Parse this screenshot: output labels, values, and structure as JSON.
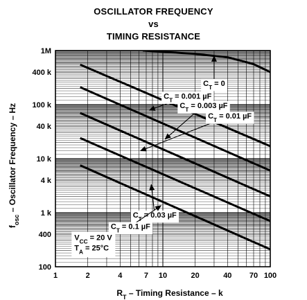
{
  "chart_data": {
    "type": "line",
    "title_lines": [
      "OSCILLATOR FREQUENCY",
      "vs",
      "TIMING RESISTANCE"
    ],
    "xlabel": {
      "main": "R",
      "sub": "T",
      "rest": " – Timing Resistance – k"
    },
    "ylabel": {
      "main": "f",
      "sub": "osc",
      "rest": " – Oscillator Frequency – Hz"
    },
    "x_scale": "log",
    "y_scale": "log",
    "xlim": [
      1,
      100
    ],
    "ylim": [
      100,
      1000000
    ],
    "x_ticks": [
      {
        "v": 1,
        "label": "1"
      },
      {
        "v": 2,
        "label": "2"
      },
      {
        "v": 4,
        "label": "4"
      },
      {
        "v": 7,
        "label": "7"
      },
      {
        "v": 10,
        "label": "10"
      },
      {
        "v": 20,
        "label": "20"
      },
      {
        "v": 40,
        "label": "40"
      },
      {
        "v": 70,
        "label": "70"
      },
      {
        "v": 100,
        "label": "100"
      }
    ],
    "y_ticks": [
      {
        "v": 100,
        "label": "100"
      },
      {
        "v": 400,
        "label": "400"
      },
      {
        "v": 1000,
        "label": "1 k"
      },
      {
        "v": 4000,
        "label": "4 k"
      },
      {
        "v": 10000,
        "label": "10 k"
      },
      {
        "v": 40000,
        "label": "40 k"
      },
      {
        "v": 100000,
        "label": "100 k"
      },
      {
        "v": 400000,
        "label": "400 k"
      },
      {
        "v": 1000000,
        "label": "1M"
      }
    ],
    "grid": true,
    "series": [
      {
        "name": "CT = 0",
        "sub": "T",
        "rest": " = 0",
        "x": [
          6.5,
          20,
          40,
          70,
          100
        ],
        "y": [
          1000000,
          870000,
          750000,
          560000,
          400000
        ]
      },
      {
        "name": "CT = 0.001 µF",
        "sub": "T",
        "rest": " = 0.001 µF",
        "x": [
          1.7,
          100
        ],
        "y": [
          550000,
          17000
        ]
      },
      {
        "name": "CT = 0.003 µF",
        "sub": "T",
        "rest": " = 0.003 µF",
        "x": [
          1.7,
          100
        ],
        "y": [
          210000,
          6000
        ]
      },
      {
        "name": "CT = 0.01 µF",
        "sub": "T",
        "rest": " = 0.01 µF",
        "x": [
          1.7,
          100
        ],
        "y": [
          70000,
          2000
        ]
      },
      {
        "name": "CT = 0.03 µF",
        "sub": "T",
        "rest": " = 0.03 µF",
        "x": [
          1.7,
          100
        ],
        "y": [
          24000,
          700
        ]
      },
      {
        "name": "CT = 0.1 µF",
        "sub": "T",
        "rest": " = 0.1 µF",
        "x": [
          1.7,
          100
        ],
        "y": [
          7500,
          210
        ]
      }
    ],
    "conditions": [
      {
        "main": "V",
        "sub": "CC",
        "rest": " = 20 V"
      },
      {
        "main": "T",
        "sub": "A",
        "rest": " = 25°C"
      }
    ],
    "series_label_prefix": "C",
    "annotations": [
      {
        "series": 0,
        "box_anchor": [
          30,
          250000
        ],
        "arrow_to": [
          30,
          790000
        ]
      },
      {
        "series": 1,
        "box_anchor": [
          17,
          145000
        ],
        "arrow_to": [
          7.5,
          79000
        ]
      },
      {
        "series": 2,
        "box_anchor": [
          24,
          97000
        ],
        "arrow_to": [
          10.5,
          23000
        ]
      },
      {
        "series": 3,
        "box_anchor": [
          42,
          62000
        ],
        "arrow_to": [
          6.2,
          14000
        ]
      },
      {
        "series": 4,
        "box_anchor": [
          8.4,
          920
        ],
        "arrow_to": [
          7.8,
          3300
        ]
      },
      {
        "series": 5,
        "box_anchor": [
          5.0,
          560
        ],
        "arrow_to": [
          9.6,
          1350
        ]
      }
    ]
  }
}
